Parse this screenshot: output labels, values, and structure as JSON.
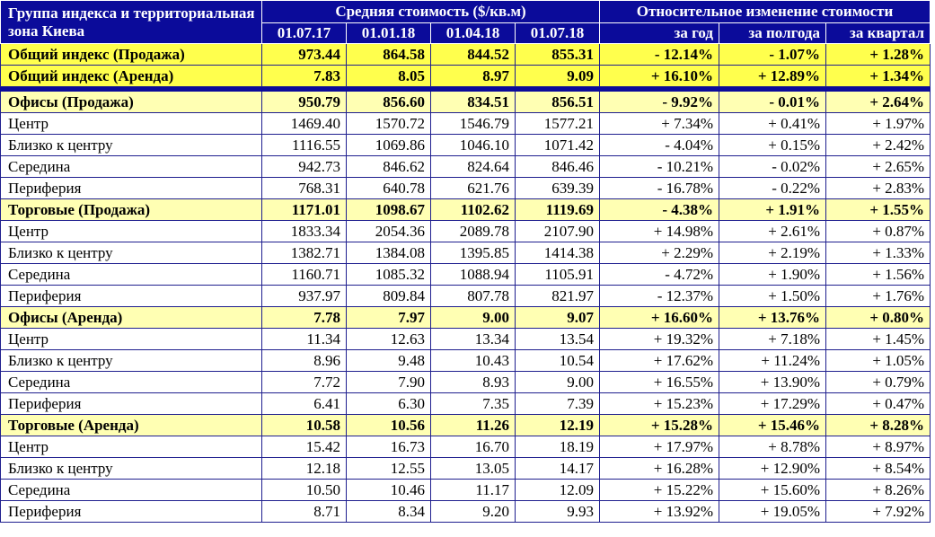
{
  "header": {
    "title": "Группа индекса и территориальная зона Киева",
    "avg_cost_title": "Средняя стоимость ($/кв.м)",
    "rel_change_title": "Относительное изменение стоимости",
    "dates": [
      "01.07.17",
      "01.01.18",
      "01.04.18",
      "01.07.18"
    ],
    "periods": [
      "за год",
      "за полгода",
      "за квартал"
    ]
  },
  "totals": [
    {
      "name": "Общий индекс (Продажа)",
      "v1": "973.44",
      "v2": "864.58",
      "v3": "844.52",
      "v4": "855.31",
      "y": "- 12.14%",
      "h": "- 1.07%",
      "q": "+ 1.28%"
    },
    {
      "name": "Общий индекс (Аренда)",
      "v1": "7.83",
      "v2": "8.05",
      "v3": "8.97",
      "v4": "9.09",
      "y": "+ 16.10%",
      "h": "+ 12.89%",
      "q": "+ 1.34%"
    }
  ],
  "groups": [
    {
      "name": "Офисы (Продажа)",
      "v1": "950.79",
      "v2": "856.60",
      "v3": "834.51",
      "v4": "856.51",
      "y": "- 9.92%",
      "h": "- 0.01%",
      "q": "+ 2.64%",
      "rows": [
        {
          "name": "Центр",
          "v1": "1469.40",
          "v2": "1570.72",
          "v3": "1546.79",
          "v4": "1577.21",
          "y": "+ 7.34%",
          "h": "+ 0.41%",
          "q": "+ 1.97%"
        },
        {
          "name": "Близко к центру",
          "v1": "1116.55",
          "v2": "1069.86",
          "v3": "1046.10",
          "v4": "1071.42",
          "y": "- 4.04%",
          "h": "+ 0.15%",
          "q": "+ 2.42%"
        },
        {
          "name": "Середина",
          "v1": "942.73",
          "v2": "846.62",
          "v3": "824.64",
          "v4": "846.46",
          "y": "- 10.21%",
          "h": "- 0.02%",
          "q": "+ 2.65%"
        },
        {
          "name": "Периферия",
          "v1": "768.31",
          "v2": "640.78",
          "v3": "621.76",
          "v4": "639.39",
          "y": "- 16.78%",
          "h": "- 0.22%",
          "q": "+ 2.83%"
        }
      ]
    },
    {
      "name": "Торговые (Продажа)",
      "v1": "1171.01",
      "v2": "1098.67",
      "v3": "1102.62",
      "v4": "1119.69",
      "y": "- 4.38%",
      "h": "+ 1.91%",
      "q": "+ 1.55%",
      "rows": [
        {
          "name": "Центр",
          "v1": "1833.34",
          "v2": "2054.36",
          "v3": "2089.78",
          "v4": "2107.90",
          "y": "+ 14.98%",
          "h": "+ 2.61%",
          "q": "+ 0.87%"
        },
        {
          "name": "Близко к центру",
          "v1": "1382.71",
          "v2": "1384.08",
          "v3": "1395.85",
          "v4": "1414.38",
          "y": "+ 2.29%",
          "h": "+ 2.19%",
          "q": "+ 1.33%"
        },
        {
          "name": "Середина",
          "v1": "1160.71",
          "v2": "1085.32",
          "v3": "1088.94",
          "v4": "1105.91",
          "y": "- 4.72%",
          "h": "+ 1.90%",
          "q": "+ 1.56%"
        },
        {
          "name": "Периферия",
          "v1": "937.97",
          "v2": "809.84",
          "v3": "807.78",
          "v4": "821.97",
          "y": "- 12.37%",
          "h": "+ 1.50%",
          "q": "+ 1.76%"
        }
      ]
    },
    {
      "name": "Офисы (Аренда)",
      "v1": "7.78",
      "v2": "7.97",
      "v3": "9.00",
      "v4": "9.07",
      "y": "+ 16.60%",
      "h": "+ 13.76%",
      "q": "+ 0.80%",
      "rows": [
        {
          "name": "Центр",
          "v1": "11.34",
          "v2": "12.63",
          "v3": "13.34",
          "v4": "13.54",
          "y": "+ 19.32%",
          "h": "+ 7.18%",
          "q": "+ 1.45%"
        },
        {
          "name": "Близко к центру",
          "v1": "8.96",
          "v2": "9.48",
          "v3": "10.43",
          "v4": "10.54",
          "y": "+ 17.62%",
          "h": "+ 11.24%",
          "q": "+ 1.05%"
        },
        {
          "name": "Середина",
          "v1": "7.72",
          "v2": "7.90",
          "v3": "8.93",
          "v4": "9.00",
          "y": "+ 16.55%",
          "h": "+ 13.90%",
          "q": "+ 0.79%"
        },
        {
          "name": "Периферия",
          "v1": "6.41",
          "v2": "6.30",
          "v3": "7.35",
          "v4": "7.39",
          "y": "+ 15.23%",
          "h": "+ 17.29%",
          "q": "+ 0.47%"
        }
      ]
    },
    {
      "name": "Торговые (Аренда)",
      "v1": "10.58",
      "v2": "10.56",
      "v3": "11.26",
      "v4": "12.19",
      "y": "+ 15.28%",
      "h": "+ 15.46%",
      "q": "+ 8.28%",
      "rows": [
        {
          "name": "Центр",
          "v1": "15.42",
          "v2": "16.73",
          "v3": "16.70",
          "v4": "18.19",
          "y": "+ 17.97%",
          "h": "+ 8.78%",
          "q": "+ 8.97%"
        },
        {
          "name": "Близко к центру",
          "v1": "12.18",
          "v2": "12.55",
          "v3": "13.05",
          "v4": "14.17",
          "y": "+ 16.28%",
          "h": "+ 12.90%",
          "q": "+ 8.54%"
        },
        {
          "name": "Середина",
          "v1": "10.50",
          "v2": "10.46",
          "v3": "11.17",
          "v4": "12.09",
          "y": "+ 15.22%",
          "h": "+ 15.60%",
          "q": "+ 8.26%"
        },
        {
          "name": "Периферия",
          "v1": "8.71",
          "v2": "8.34",
          "v3": "9.20",
          "v4": "9.93",
          "y": "+ 13.92%",
          "h": "+ 19.05%",
          "q": "+ 7.92%"
        }
      ]
    }
  ],
  "colors": {
    "header_bg": "#0b0b9a",
    "total_bg": "#ffff4d",
    "group_bg": "#ffffb3"
  }
}
